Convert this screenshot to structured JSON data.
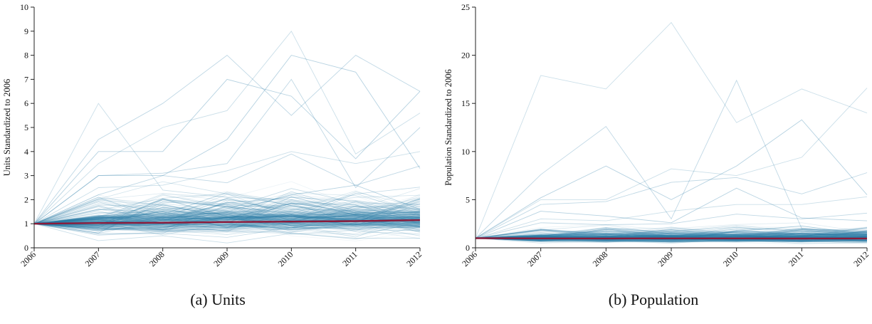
{
  "chart_data": [
    {
      "type": "line",
      "caption": "(a) Units",
      "ylabel": "Units Standardized to 2006",
      "xlabel": "",
      "x": [
        "2006",
        "2007",
        "2008",
        "2009",
        "2010",
        "2011",
        "2012"
      ],
      "ylim": [
        0,
        10
      ],
      "yticks": [
        0,
        1,
        2,
        3,
        4,
        5,
        6,
        7,
        8,
        9,
        10
      ],
      "grid": false,
      "colors": {
        "series": "#2e7fa8",
        "mean": "#8b1a3a"
      },
      "highlight_series": [
        {
          "values": [
            1,
            6.0,
            2.4,
            2.1,
            2.0,
            1.7,
            1.5
          ]
        },
        {
          "values": [
            1,
            4.5,
            6.0,
            8.0,
            5.5,
            8.0,
            6.5
          ]
        },
        {
          "values": [
            1,
            4.0,
            4.0,
            7.0,
            6.3,
            3.7,
            6.5
          ]
        },
        {
          "values": [
            1,
            3.5,
            5.0,
            5.7,
            9.0,
            3.9,
            5.6
          ]
        },
        {
          "values": [
            1,
            3.0,
            3.1,
            3.5,
            7.0,
            2.5,
            5.0
          ]
        },
        {
          "values": [
            1,
            3.0,
            3.0,
            4.5,
            8.0,
            7.3,
            3.3
          ]
        },
        {
          "values": [
            1,
            2.5,
            2.6,
            3.2,
            4.0,
            3.5,
            4.0
          ]
        },
        {
          "values": [
            1,
            2.2,
            3.0,
            2.7,
            3.9,
            2.6,
            3.4
          ]
        },
        {
          "values": [
            1,
            0.7,
            1.0,
            1.5,
            2.2,
            2.6,
            1.6
          ]
        },
        {
          "values": [
            1,
            0.3,
            0.5,
            0.2,
            0.6,
            0.4,
            0.4
          ]
        }
      ],
      "bulk_series": {
        "count": 230,
        "spread": [
          0.1,
          3.2
        ],
        "typical": [
          0.6,
          1.6
        ]
      },
      "mean_series": {
        "values": [
          1.0,
          1.03,
          1.04,
          1.07,
          1.09,
          1.11,
          1.15
        ]
      }
    },
    {
      "type": "line",
      "caption": "(b) Population",
      "ylabel": "Population Standardized to 2006",
      "xlabel": "",
      "x": [
        "2006",
        "2007",
        "2008",
        "2009",
        "2010",
        "2011",
        "2012"
      ],
      "ylim": [
        0,
        25
      ],
      "yticks": [
        0,
        5,
        10,
        15,
        20,
        25
      ],
      "grid": false,
      "colors": {
        "series": "#2e7fa8",
        "mean": "#8b1a3a"
      },
      "highlight_series": [
        {
          "values": [
            1,
            17.9,
            16.5,
            23.4,
            13.0,
            16.5,
            14.0
          ]
        },
        {
          "values": [
            1,
            7.6,
            12.6,
            3.0,
            17.4,
            2.0,
            1.5
          ]
        },
        {
          "values": [
            1,
            5.2,
            8.5,
            5.0,
            8.5,
            13.3,
            5.5
          ]
        },
        {
          "values": [
            1,
            5.0,
            5.0,
            8.2,
            7.5,
            9.4,
            16.6
          ]
        },
        {
          "values": [
            1,
            4.5,
            4.8,
            6.8,
            7.3,
            5.6,
            7.8
          ]
        },
        {
          "values": [
            1,
            3.8,
            3.3,
            2.6,
            6.2,
            3.1,
            2.8
          ]
        },
        {
          "values": [
            1,
            3.0,
            2.8,
            3.8,
            4.5,
            4.5,
            5.3
          ]
        },
        {
          "values": [
            1,
            2.6,
            2.4,
            2.5,
            3.5,
            3.0,
            3.6
          ]
        }
      ],
      "bulk_series": {
        "count": 230,
        "spread": [
          0.2,
          2.9
        ],
        "typical": [
          0.5,
          1.5
        ]
      },
      "mean_series": {
        "values": [
          1.0,
          0.98,
          0.97,
          0.98,
          0.98,
          0.96,
          0.97
        ]
      }
    }
  ]
}
